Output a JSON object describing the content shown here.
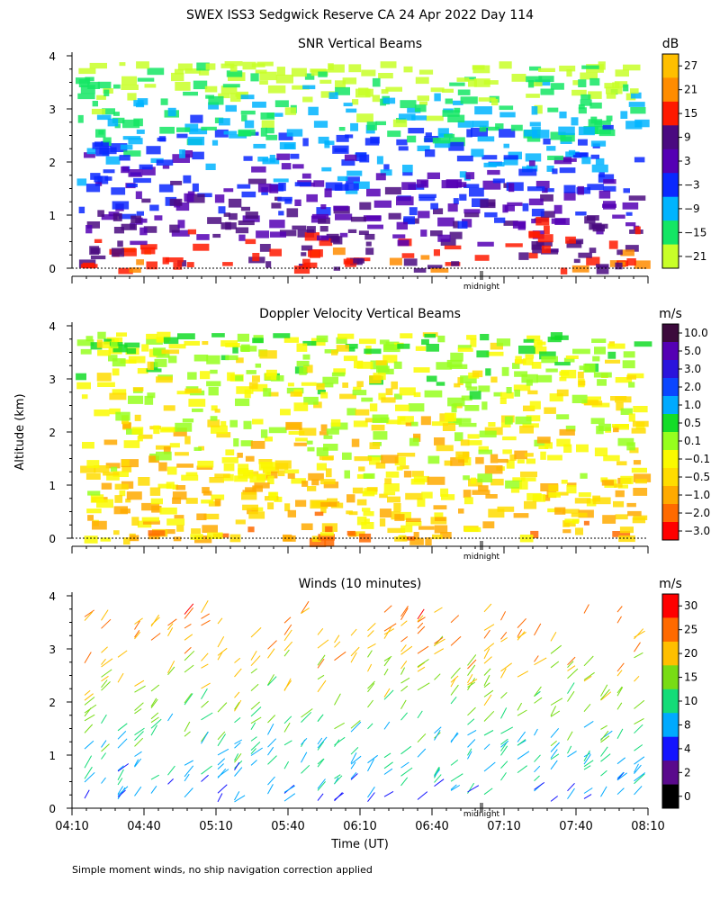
{
  "title": "SWEX ISS3 Sedgwick Reserve CA  24 Apr 2022 Day 114",
  "shared_ylabel": "Altitude (km)",
  "footnote": "Simple moment winds, no ship navigation correction applied",
  "colors": {
    "axis": "#000000",
    "background": "#ffffff"
  },
  "chart_data": [
    {
      "type": "heatmap",
      "title": "SNR Vertical Beams",
      "colorbar_unit": "dB",
      "ylim": [
        0,
        4
      ],
      "y_ticks": [
        "0",
        "1",
        "2",
        "3",
        "4"
      ],
      "x_marker_label": "midnight",
      "grid": false,
      "colorbar": {
        "labels": [
          "27",
          "21",
          "15",
          "9",
          "3",
          "−3",
          "−9",
          "−15",
          "−21"
        ],
        "colors": [
          "#ffbf00",
          "#ff8c00",
          "#ff1a00",
          "#4a0a80",
          "#5500b4",
          "#0a28ff",
          "#00b4ff",
          "#14e664",
          "#c8ff28"
        ]
      }
    },
    {
      "type": "heatmap",
      "title": "Doppler Velocity Vertical Beams",
      "colorbar_unit": "m/s",
      "ylim": [
        0,
        4
      ],
      "y_ticks": [
        "0",
        "1",
        "2",
        "3",
        "4"
      ],
      "x_marker_label": "midnight",
      "grid": false,
      "colorbar": {
        "labels": [
          "10.0",
          "5.0",
          "3.0",
          "2.0",
          "1.0",
          "0.5",
          "0.1",
          "−0.1",
          "−0.5",
          "−1.0",
          "−2.0",
          "−3.0"
        ],
        "colors": [
          "#3c0a3c",
          "#5500b4",
          "#2a14dc",
          "#0a46ff",
          "#00aaff",
          "#14dc28",
          "#96ff1e",
          "#fafa00",
          "#ffdc00",
          "#ffaa00",
          "#ff6a00",
          "#ff0000"
        ]
      }
    },
    {
      "type": "scatter",
      "title": "Winds (10 minutes)",
      "colorbar_unit": "m/s",
      "ylim": [
        0,
        4
      ],
      "y_ticks": [
        "0",
        "1",
        "2",
        "3",
        "4"
      ],
      "x_ticks": [
        "04:10",
        "04:40",
        "05:10",
        "05:40",
        "06:10",
        "06:40",
        "07:10",
        "07:40",
        "08:10"
      ],
      "xlabel": "Time (UT)",
      "x_marker_label": "midnight",
      "grid": false,
      "colorbar": {
        "labels": [
          "30",
          "25",
          "20",
          "15",
          "10",
          "8",
          "4",
          "2",
          "0"
        ],
        "colors": [
          "#ff0000",
          "#ff6a00",
          "#ffbf00",
          "#78dc14",
          "#14dc78",
          "#00aaff",
          "#1414ff",
          "#5a0a8c",
          "#000000"
        ]
      }
    }
  ]
}
